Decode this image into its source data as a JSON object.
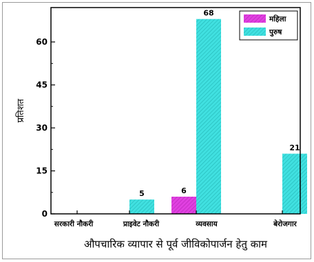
{
  "chart_data": {
    "type": "bar",
    "categories": [
      "सरकारी नौकरी",
      "प्राइवेट नौकरी",
      "व्यवसाय",
      "बेरोजगार"
    ],
    "series": [
      {
        "name": "महिला",
        "values": [
          0,
          0,
          6,
          0
        ],
        "color": "#e040e0"
      },
      {
        "name": "पुरुष",
        "values": [
          0,
          5,
          68,
          21
        ],
        "color": "#40e0e0"
      }
    ],
    "data_labels": [
      {
        "series": 1,
        "category": 1,
        "label": "5"
      },
      {
        "series": 0,
        "category": 2,
        "label": "6"
      },
      {
        "series": 1,
        "category": 2,
        "label": "68"
      },
      {
        "series": 1,
        "category": 3,
        "label": "21"
      }
    ],
    "yticks": [
      0,
      15,
      30,
      45,
      60
    ],
    "ylim": [
      0,
      72
    ],
    "ylabel": "प्रतिशत",
    "xlabel": "औपचारिक व्यापार से पूर्व जीविकोपार्जन हेतु काम",
    "legend_position": "top-right",
    "grid": false
  }
}
